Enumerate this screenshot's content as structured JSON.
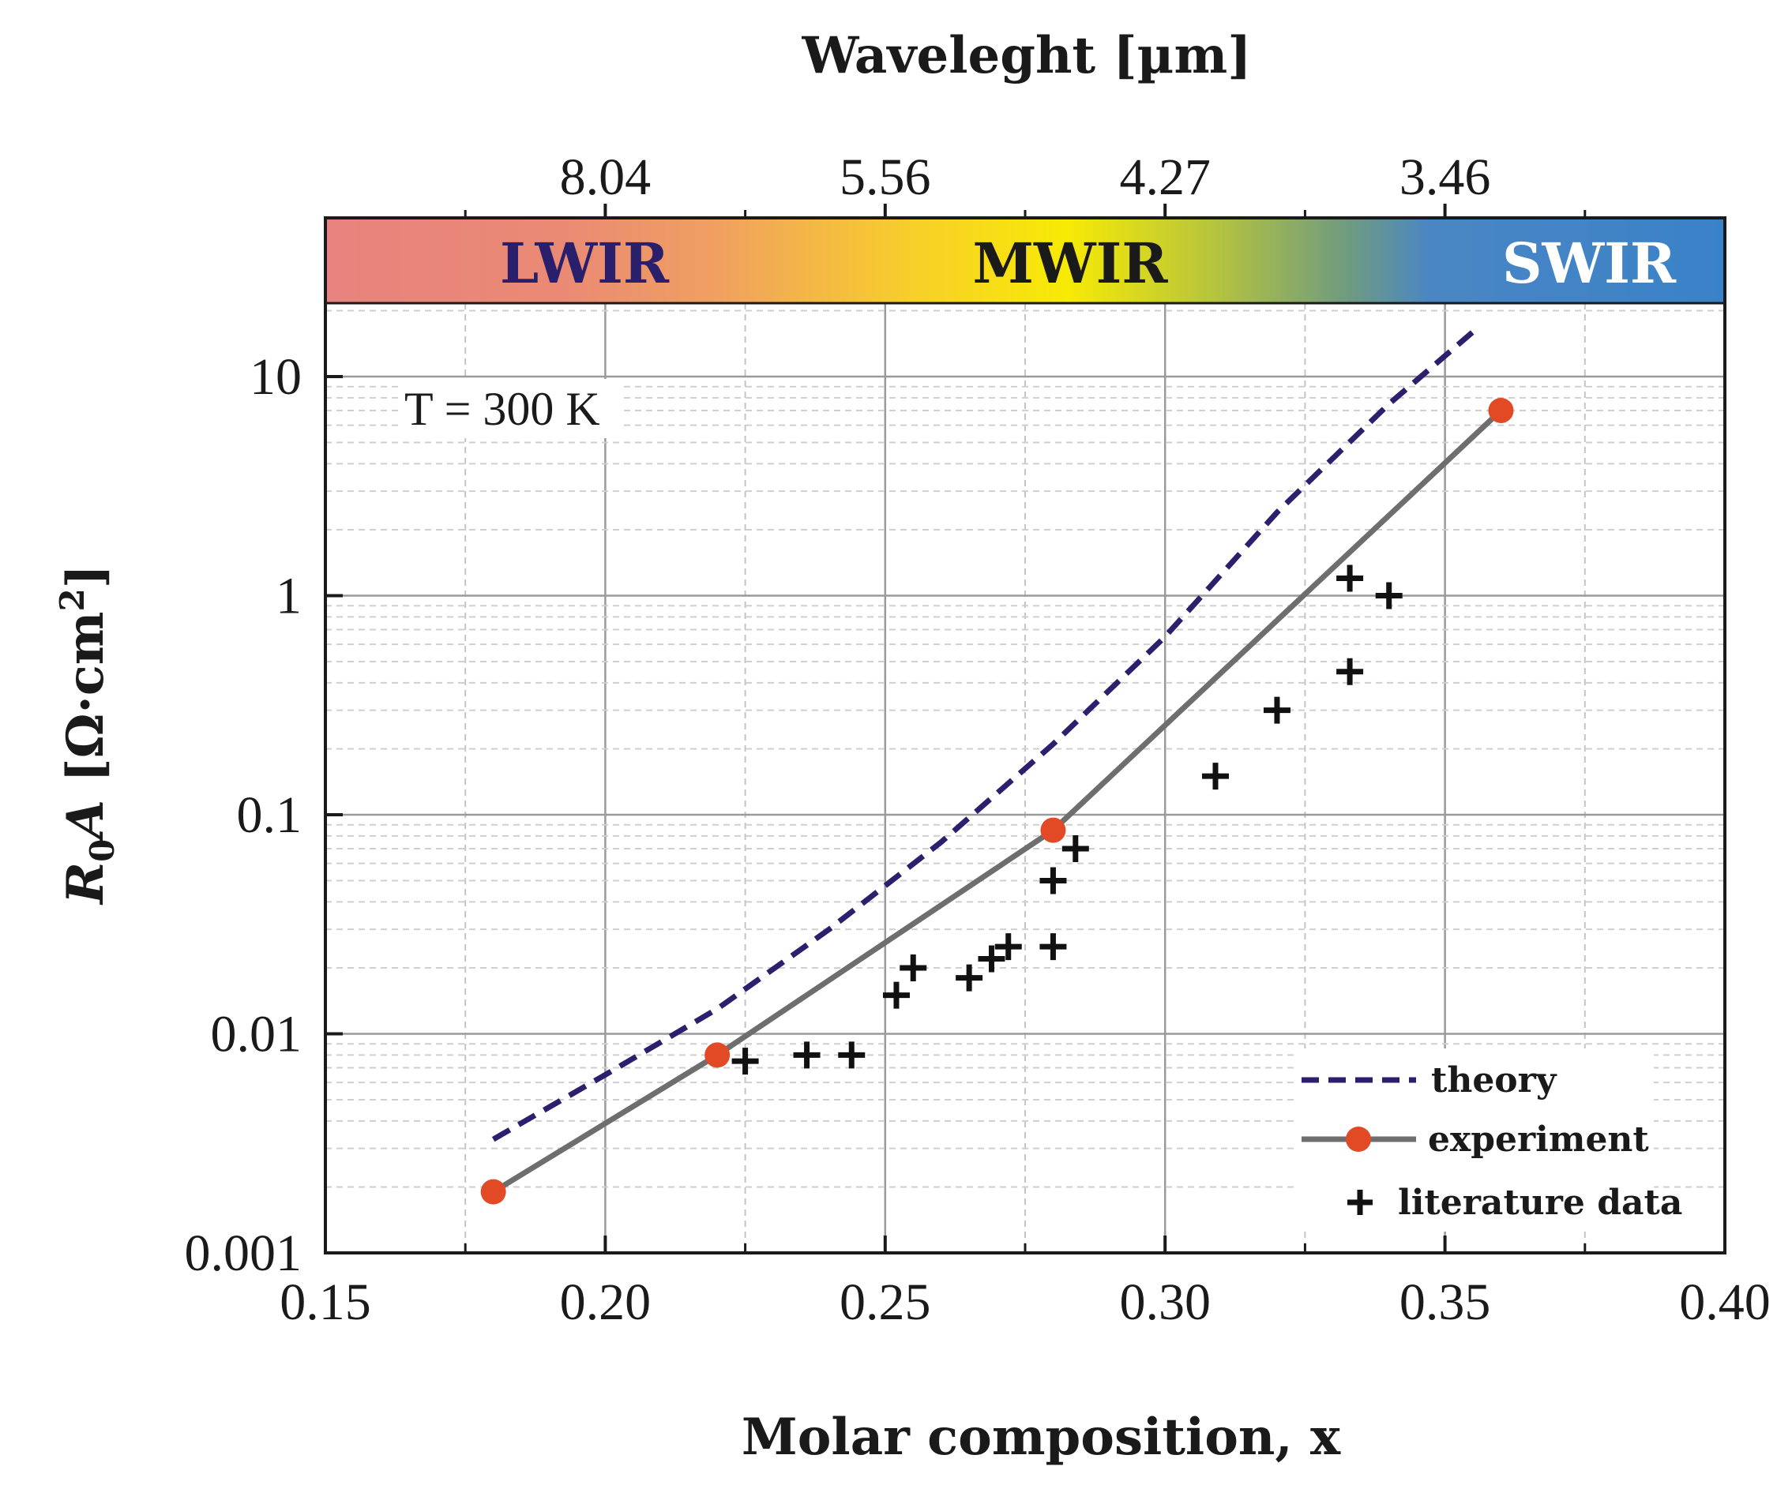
{
  "chart_data": {
    "type": "line",
    "title": "",
    "xlabel": "Molar composition, x",
    "ylabel": "R0A [Ω·cm2]",
    "ylabel_parts": {
      "r": "R",
      "sub": "0",
      "a": "A",
      "units_pre": " [Ω·cm",
      "sup": "2",
      "units_post": "]"
    },
    "x2label": "Waveleght [µm]",
    "xlim": [
      0.15,
      0.4
    ],
    "ylim": [
      0.001,
      50
    ],
    "yscale": "log",
    "grid": true,
    "x_ticks": [
      0.15,
      0.2,
      0.25,
      0.3,
      0.35,
      0.4
    ],
    "x_tick_labels": [
      "0.15",
      "0.20",
      "0.25",
      "0.30",
      "0.35",
      "0.40"
    ],
    "y_ticks": [
      0.001,
      0.01,
      0.1,
      1,
      10
    ],
    "y_tick_labels": [
      "0.001",
      "0.01",
      "0.1",
      "1",
      "10"
    ],
    "top_ticks": [
      {
        "x": 0.2,
        "label": "8.04"
      },
      {
        "x": 0.25,
        "label": "5.56"
      },
      {
        "x": 0.3,
        "label": "4.27"
      },
      {
        "x": 0.35,
        "label": "3.46"
      }
    ],
    "bands": [
      {
        "label": "LWIR",
        "color": "#2a1f6b"
      },
      {
        "label": "MWIR",
        "color": "#1a1a1a"
      },
      {
        "label": "SWIR",
        "color": "#ffffff"
      }
    ],
    "band_gradient": [
      {
        "stop": 0.0,
        "color": "#e8827e"
      },
      {
        "stop": 0.17,
        "color": "#ea8a74"
      },
      {
        "stop": 0.28,
        "color": "#f0a060"
      },
      {
        "stop": 0.42,
        "color": "#f7cf2a"
      },
      {
        "stop": 0.53,
        "color": "#f7ea05"
      },
      {
        "stop": 0.63,
        "color": "#b9c63a"
      },
      {
        "stop": 0.73,
        "color": "#6f9b80"
      },
      {
        "stop": 0.79,
        "color": "#4a86c4"
      },
      {
        "stop": 1.0,
        "color": "#3a82c8"
      }
    ],
    "annotation": "T = 300 K",
    "series": [
      {
        "name": "theory",
        "style": "dashed",
        "color": "#2d1e6e",
        "x": [
          0.18,
          0.2,
          0.22,
          0.24,
          0.26,
          0.28,
          0.3,
          0.32,
          0.34,
          0.355
        ],
        "y": [
          0.0033,
          0.0065,
          0.013,
          0.03,
          0.075,
          0.21,
          0.65,
          2.4,
          7.5,
          16
        ]
      },
      {
        "name": "experiment",
        "style": "solid-marker",
        "color": "#6e6e6e",
        "marker_color": "#e24a26",
        "x": [
          0.18,
          0.22,
          0.28,
          0.36
        ],
        "y": [
          0.0019,
          0.008,
          0.085,
          7.0
        ]
      },
      {
        "name": "literature data",
        "style": "plus",
        "color": "#111111",
        "x": [
          0.225,
          0.236,
          0.244,
          0.252,
          0.255,
          0.265,
          0.269,
          0.272,
          0.28,
          0.28,
          0.284,
          0.309,
          0.32,
          0.333,
          0.333,
          0.34
        ],
        "y": [
          0.0075,
          0.008,
          0.008,
          0.015,
          0.02,
          0.018,
          0.022,
          0.025,
          0.025,
          0.05,
          0.07,
          0.15,
          0.3,
          0.45,
          1.2,
          1.0
        ]
      }
    ],
    "legend": [
      "theory",
      "experiment",
      "literature data"
    ],
    "legend_position": "bottom-right"
  }
}
